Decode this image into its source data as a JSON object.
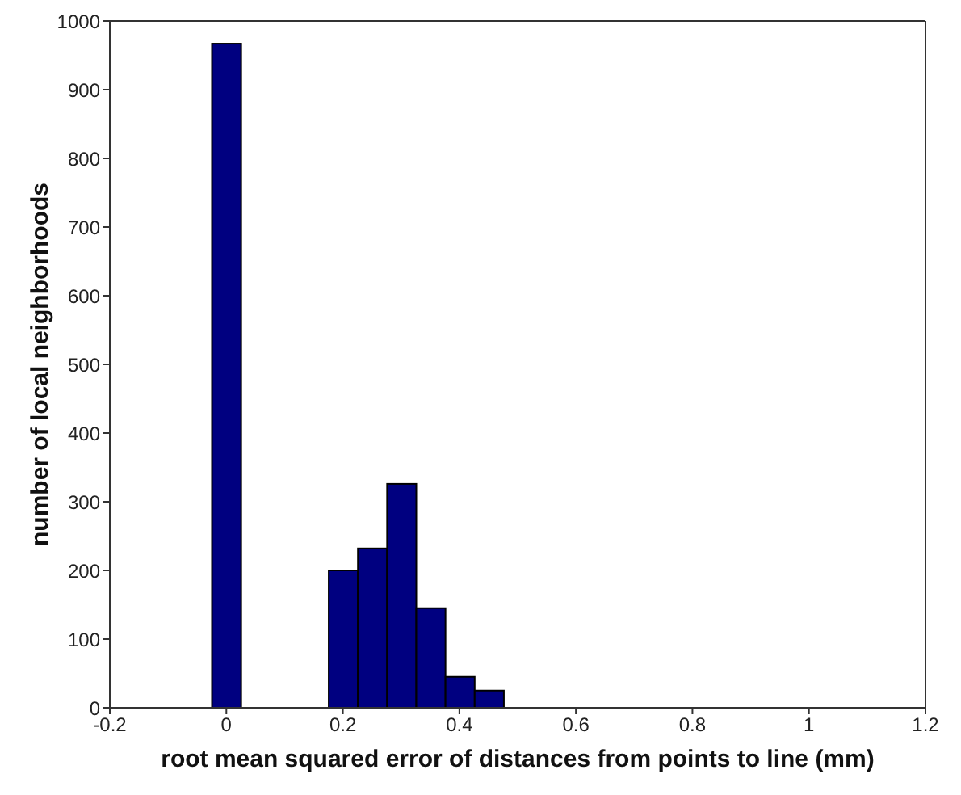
{
  "chart_data": {
    "type": "histogram",
    "xlabel": "root mean squared error of distances from points to line (mm)",
    "ylabel": "number of local neighborhoods",
    "bins": [
      -0.025,
      0.025,
      0.075,
      0.125,
      0.175,
      0.225,
      0.275,
      0.325,
      0.375,
      0.425,
      0.475
    ],
    "values": [
      967,
      0,
      0,
      0,
      200,
      232,
      326,
      145,
      45,
      25
    ],
    "color": "#000080",
    "xlim": [
      -0.2,
      1.2
    ],
    "xticks": [
      -0.2,
      0,
      0.2,
      0.4,
      0.6,
      0.8,
      1,
      1.2
    ],
    "ylim": [
      0,
      1000
    ],
    "yticks": [
      0,
      100,
      200,
      300,
      400,
      500,
      600,
      700,
      800,
      900,
      1000
    ],
    "grid": false
  }
}
